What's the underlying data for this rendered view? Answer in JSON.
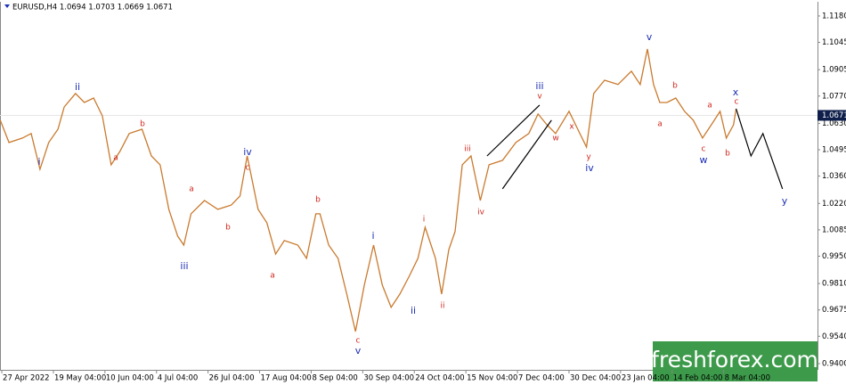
{
  "chart_data": {
    "type": "line",
    "title": "EURUSD,H4  1.0694 1.0703 1.0669 1.0671",
    "xlim": [
      -0.03,
      15.79
    ],
    "ylim": [
      0.9368,
      1.1239
    ],
    "xticks": [
      {
        "value": 0,
        "label": "27 Apr 2022"
      },
      {
        "value": 1,
        "label": "19 May 04:00"
      },
      {
        "value": 2,
        "label": "10 Jun 04:00"
      },
      {
        "value": 3,
        "label": "4 Jul 04:00"
      },
      {
        "value": 4,
        "label": "26 Jul 04:00"
      },
      {
        "value": 5,
        "label": "17 Aug 04:00"
      },
      {
        "value": 6,
        "label": "8 Sep 04:00"
      },
      {
        "value": 7,
        "label": "30 Sep 04:00"
      },
      {
        "value": 8,
        "label": "24 Oct 04:00"
      },
      {
        "value": 9,
        "label": "15 Nov 04:00"
      },
      {
        "value": 10,
        "label": "7 Dec 04:00"
      },
      {
        "value": 11,
        "label": "30 Dec 04:00"
      },
      {
        "value": 12,
        "label": "23 Jan 04:00"
      },
      {
        "value": 13,
        "label": "14 Feb 04:00"
      },
      {
        "value": 14,
        "label": "8 Mar 04:00"
      }
    ],
    "yticks": [
      {
        "value": 1.118,
        "label": "1.1180"
      },
      {
        "value": 1.1045,
        "label": "1.1045"
      },
      {
        "value": 1.0905,
        "label": "1.0905"
      },
      {
        "value": 1.077,
        "label": "1.0770"
      },
      {
        "value": 1.063,
        "label": "1.0630"
      },
      {
        "value": 1.0495,
        "label": "1.0495"
      },
      {
        "value": 1.036,
        "label": "1.0360"
      },
      {
        "value": 1.022,
        "label": "1.0220"
      },
      {
        "value": 1.0085,
        "label": "1.0085"
      },
      {
        "value": 0.995,
        "label": "0.9950"
      },
      {
        "value": 0.981,
        "label": "0.9810"
      },
      {
        "value": 0.9675,
        "label": "0.9675"
      },
      {
        "value": 0.954,
        "label": "0.9540"
      },
      {
        "value": 0.94,
        "label": "0.9400"
      }
    ],
    "current_price": {
      "value": 1.0671,
      "label": "1.0671"
    },
    "series": [
      {
        "color": "#c97a2e",
        "x": [
          -0.03,
          0.14,
          0.4,
          0.57,
          0.74,
          0.91,
          1.09,
          1.21,
          1.43,
          1.6,
          1.78,
          1.95,
          2.12,
          2.29,
          2.47,
          2.72,
          2.9,
          3.07,
          3.24,
          3.41,
          3.53,
          3.67,
          3.93,
          4.19,
          4.45,
          4.62,
          4.76,
          4.97,
          5.14,
          5.31,
          5.48,
          5.74,
          5.91,
          6.09,
          6.17,
          6.34,
          6.52,
          6.69,
          6.86,
          7.03,
          7.21,
          7.38,
          7.55,
          7.72,
          7.9,
          8.07,
          8.21,
          8.41,
          8.53,
          8.67,
          8.79,
          8.93,
          9.1,
          9.28,
          9.45,
          9.71,
          9.97,
          10.22,
          10.4,
          10.57,
          10.74,
          11.0,
          11.17,
          11.34,
          11.48,
          11.69,
          11.95,
          12.21,
          12.38,
          12.52,
          12.64,
          12.76,
          12.9,
          13.07,
          13.24,
          13.41,
          13.59,
          13.76,
          13.93,
          14.05,
          14.19,
          14.24
        ],
        "values": [
          1.0646,
          1.0532,
          1.0555,
          1.0578,
          1.0395,
          1.0532,
          1.06,
          1.0714,
          1.0783,
          1.0737,
          1.076,
          1.0669,
          1.0418,
          1.0486,
          1.0578,
          1.06,
          1.0463,
          1.0418,
          1.019,
          1.0053,
          1.0007,
          1.0167,
          1.0235,
          1.019,
          1.0212,
          1.0258,
          1.0463,
          1.019,
          1.0121,
          0.9961,
          1.003,
          1.0007,
          0.9939,
          1.0167,
          1.0167,
          1.0007,
          0.9939,
          0.9756,
          0.9564,
          0.9802,
          1.0007,
          0.9802,
          0.9688,
          0.9756,
          0.9847,
          0.9939,
          1.0098,
          0.9939,
          0.9756,
          0.9984,
          1.0076,
          1.0418,
          1.0463,
          1.0235,
          1.0418,
          1.0441,
          1.0532,
          1.0578,
          1.0678,
          1.0623,
          1.0578,
          1.0692,
          1.06,
          1.0509,
          1.0783,
          1.0851,
          1.0829,
          1.0897,
          1.0829,
          1.1011,
          1.0829,
          1.0737,
          1.0737,
          1.076,
          1.0692,
          1.0646,
          1.0555,
          1.0623,
          1.0692,
          1.0555,
          1.0623,
          1.0705
        ]
      },
      {
        "color": "#000000",
        "x": [
          14.24,
          14.53,
          14.76,
          15.14
        ],
        "values": [
          1.0705,
          1.0463,
          1.0578,
          1.0295
        ]
      },
      {
        "color": "#000000",
        "x": [
          9.41,
          10.43
        ],
        "values": [
          1.0463,
          1.0724
        ]
      },
      {
        "color": "#000000",
        "x": [
          9.71,
          10.66
        ],
        "values": [
          1.0295,
          1.0646
        ]
      }
    ],
    "annotations": [
      {
        "text": "i",
        "color": "#1c2fb5"
      },
      {
        "text": "ii",
        "color": "#1c2fb5"
      },
      {
        "text": "b",
        "color": "#d0281e"
      },
      {
        "text": "a",
        "color": "#d0281e"
      },
      {
        "text": "iii",
        "color": "#1c2fb5"
      },
      {
        "text": "iv",
        "color": "#1c2fb5"
      },
      {
        "text": "c",
        "color": "#d0281e"
      },
      {
        "text": "a",
        "color": "#d0281e"
      },
      {
        "text": "b",
        "color": "#d0281e"
      },
      {
        "text": "a",
        "color": "#d0281e"
      },
      {
        "text": "b",
        "color": "#d0281e"
      },
      {
        "text": "c",
        "color": "#d0281e"
      },
      {
        "text": "v",
        "color": "#1c2fb5"
      },
      {
        "text": "i",
        "color": "#1c2fb5"
      },
      {
        "text": "ii",
        "color": "#1c2fb5"
      },
      {
        "text": "i",
        "color": "#d0281e"
      },
      {
        "text": "ii",
        "color": "#d0281e"
      },
      {
        "text": "iii",
        "color": "#d0281e"
      },
      {
        "text": "iv",
        "color": "#d0281e"
      },
      {
        "text": "iii",
        "color": "#1c2fb5"
      },
      {
        "text": "v",
        "color": "#d0281e"
      },
      {
        "text": "x",
        "color": "#d0281e"
      },
      {
        "text": "w",
        "color": "#d0281e"
      },
      {
        "text": "y",
        "color": "#d0281e"
      },
      {
        "text": "iv",
        "color": "#1c2fb5"
      },
      {
        "text": "v",
        "color": "#1c2fb5"
      },
      {
        "text": "b",
        "color": "#d0281e"
      },
      {
        "text": "a",
        "color": "#d0281e"
      },
      {
        "text": "a",
        "color": "#d0281e"
      },
      {
        "text": "c",
        "color": "#d0281e"
      },
      {
        "text": "w",
        "color": "#1c2fb5"
      },
      {
        "text": "b",
        "color": "#d0281e"
      },
      {
        "text": "x",
        "color": "#1c2fb5"
      },
      {
        "text": "c",
        "color": "#d0281e"
      },
      {
        "text": "y",
        "color": "#1c2fb5"
      }
    ],
    "watermark": "freshforex.com"
  }
}
